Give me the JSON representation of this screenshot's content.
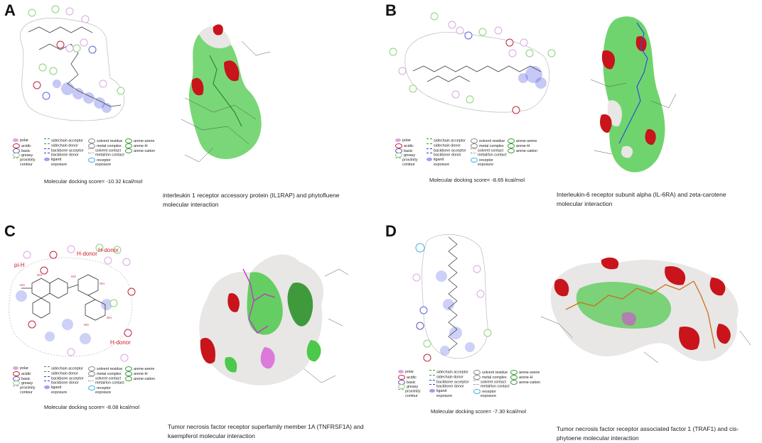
{
  "panels": [
    {
      "letter": "A",
      "score": "Molecular docking score= -10.32 kcal/mol",
      "caption_line1": "interleukin 1 receptor accessory protein (IL1RAP) and phytofluene",
      "caption_line2": "molecular interaction"
    },
    {
      "letter": "B",
      "score": "Molecular docking score= -8.65 kcal/mol",
      "caption_line1": "Interleukin-6 receptor subunit alpha (IL-6RA) and zeta-carotene",
      "caption_line2": "molecular interaction"
    },
    {
      "letter": "C",
      "score": "Molecular docking score= -8.08 kcal/mol",
      "caption_line1": "Tumor necrosis factor receptor superfamily member 1A (TNFRSF1A) and",
      "caption_line2": "kaempferol molecular interaction",
      "annotations": [
        "H-donor",
        "H-donor",
        "pi-H",
        "H-donor"
      ]
    },
    {
      "letter": "D",
      "score": "Molecular docking score= -7.30 kcal/mol",
      "caption_line1": "Tumor necrosis factor receptor associated factor 1 (TRAF1) and cis-",
      "caption_line2": "phytoene molecular interaction"
    }
  ],
  "legend": {
    "col1": [
      "polar",
      "acidic",
      "basic",
      "greasy",
      "proximity",
      "contour"
    ],
    "col2": [
      "sidechain acceptor",
      "sidechain donor",
      "backbone acceptor",
      "backbone donor",
      "ligand",
      "exposure"
    ],
    "col3": [
      "solvent residue",
      "metal complex",
      "solvent contact",
      "metal/ion contact",
      "receptor",
      "exposure"
    ],
    "col4": [
      "arene-arene",
      "arene-H",
      "arene-cation"
    ]
  },
  "colors": {
    "polar": "#d9a8e0",
    "acidic": "#c0203a",
    "basic": "#6a4fb0",
    "greasy": "#8bd27a",
    "exposure": "#5b62e6",
    "surface_green": "#4cc94a",
    "surface_red": "#c8141a",
    "surface_white": "#e9e6e6",
    "surface_magenta": "#d64ad4"
  }
}
